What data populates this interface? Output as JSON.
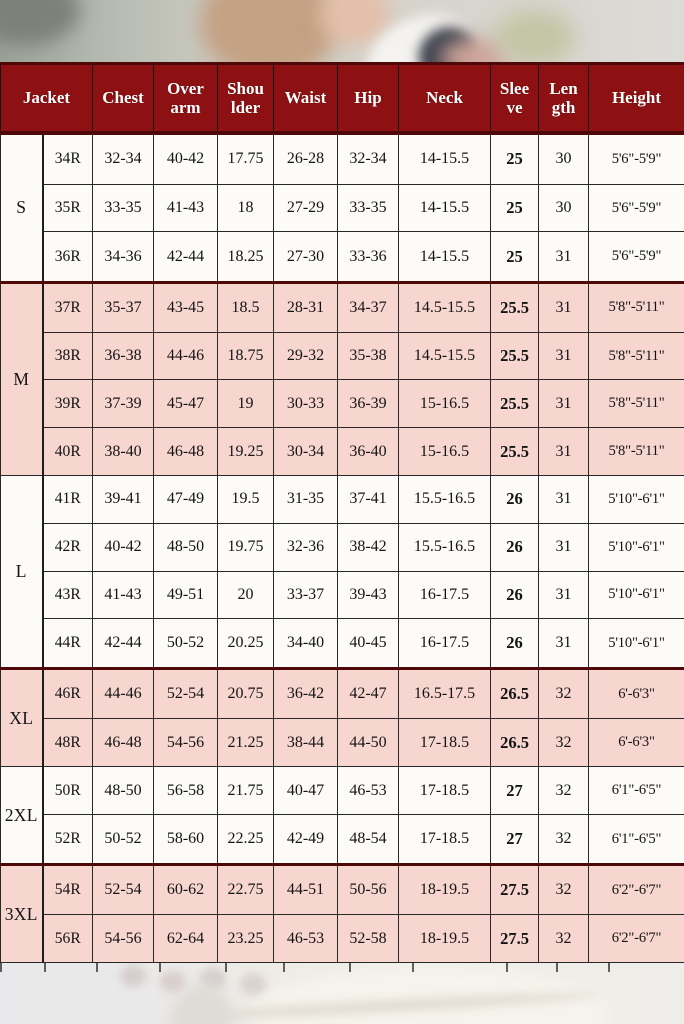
{
  "colors": {
    "header_bg": "#8d1112",
    "header_text": "#ffffff",
    "group_separator": "#4f0808",
    "pink_row": "#f8d6d0",
    "white_row": "#fcfbf8",
    "cell_border": "#282828"
  },
  "chart_data": {
    "type": "table",
    "columns": [
      "Jacket",
      "Chest",
      "Over\narm",
      "Shou\nlder",
      "Waist",
      "Hip",
      "Neck",
      "Slee\nve",
      "Len\ngth",
      "Height"
    ],
    "row_groups": [
      {
        "label": "S",
        "tone": "white",
        "thick_top": false,
        "rows": [
          [
            "34R",
            "32-34",
            "40-42",
            "17.75",
            "26-28",
            "32-34",
            "14-15.5",
            "25",
            "30",
            "5'6\"-5'9\""
          ],
          [
            "35R",
            "33-35",
            "41-43",
            "18",
            "27-29",
            "33-35",
            "14-15.5",
            "25",
            "30",
            "5'6\"-5'9\""
          ],
          [
            "36R",
            "34-36",
            "42-44",
            "18.25",
            "27-30",
            "33-36",
            "14-15.5",
            "25",
            "31",
            "5'6\"-5'9\""
          ]
        ]
      },
      {
        "label": "M",
        "tone": "pink",
        "thick_top": true,
        "rows": [
          [
            "37R",
            "35-37",
            "43-45",
            "18.5",
            "28-31",
            "34-37",
            "14.5-15.5",
            "25.5",
            "31",
            "5'8\"-5'11\""
          ],
          [
            "38R",
            "36-38",
            "44-46",
            "18.75",
            "29-32",
            "35-38",
            "14.5-15.5",
            "25.5",
            "31",
            "5'8\"-5'11\""
          ],
          [
            "39R",
            "37-39",
            "45-47",
            "19",
            "30-33",
            "36-39",
            "15-16.5",
            "25.5",
            "31",
            "5'8\"-5'11\""
          ],
          [
            "40R",
            "38-40",
            "46-48",
            "19.25",
            "30-34",
            "36-40",
            "15-16.5",
            "25.5",
            "31",
            "5'8\"-5'11\""
          ]
        ]
      },
      {
        "label": "L",
        "tone": "white",
        "thick_top": false,
        "rows": [
          [
            "41R",
            "39-41",
            "47-49",
            "19.5",
            "31-35",
            "37-41",
            "15.5-16.5",
            "26",
            "31",
            "5'10\"-6'1\""
          ],
          [
            "42R",
            "40-42",
            "48-50",
            "19.75",
            "32-36",
            "38-42",
            "15.5-16.5",
            "26",
            "31",
            "5'10\"-6'1\""
          ],
          [
            "43R",
            "41-43",
            "49-51",
            "20",
            "33-37",
            "39-43",
            "16-17.5",
            "26",
            "31",
            "5'10\"-6'1\""
          ],
          [
            "44R",
            "42-44",
            "50-52",
            "20.25",
            "34-40",
            "40-45",
            "16-17.5",
            "26",
            "31",
            "5'10\"-6'1\""
          ]
        ]
      },
      {
        "label": "XL",
        "tone": "pink",
        "thick_top": true,
        "rows": [
          [
            "46R",
            "44-46",
            "52-54",
            "20.75",
            "36-42",
            "42-47",
            "16.5-17.5",
            "26.5",
            "32",
            "6'-6'3\""
          ],
          [
            "48R",
            "46-48",
            "54-56",
            "21.25",
            "38-44",
            "44-50",
            "17-18.5",
            "26.5",
            "32",
            "6'-6'3\""
          ]
        ]
      },
      {
        "label": "2XL",
        "tone": "white",
        "thick_top": false,
        "rows": [
          [
            "50R",
            "48-50",
            "56-58",
            "21.75",
            "40-47",
            "46-53",
            "17-18.5",
            "27",
            "32",
            "6'1\"-6'5\""
          ],
          [
            "52R",
            "50-52",
            "58-60",
            "22.25",
            "42-49",
            "48-54",
            "17-18.5",
            "27",
            "32",
            "6'1\"-6'5\""
          ]
        ]
      },
      {
        "label": "3XL",
        "tone": "pink",
        "thick_top": true,
        "rows": [
          [
            "54R",
            "52-54",
            "60-62",
            "22.75",
            "44-51",
            "50-56",
            "18-19.5",
            "27.5",
            "32",
            "6'2\"-6'7\""
          ],
          [
            "56R",
            "54-56",
            "62-64",
            "23.25",
            "46-53",
            "52-58",
            "18-19.5",
            "27.5",
            "32",
            "6'2\"-6'7\""
          ]
        ]
      }
    ]
  }
}
